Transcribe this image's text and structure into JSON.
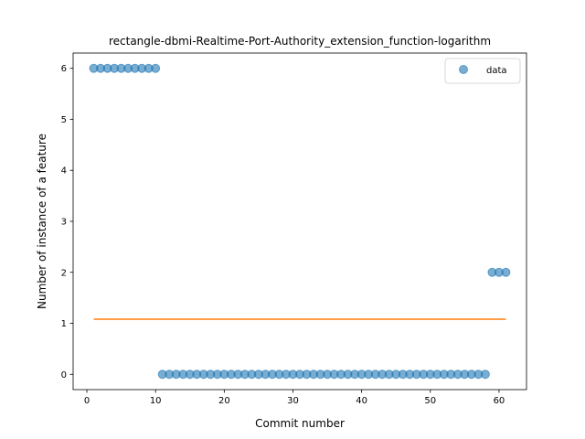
{
  "chart_data": {
    "type": "scatter",
    "title": "rectangle-dbmi-Realtime-Port-Authority_extension_function-logarithm",
    "xlabel": "Commit number",
    "ylabel": "Number of instance of a feature",
    "xlim": [
      -2.0,
      64.0
    ],
    "ylim": [
      -0.3,
      6.3
    ],
    "xticks": [
      0,
      10,
      20,
      30,
      40,
      50,
      60
    ],
    "yticks": [
      0,
      1,
      2,
      3,
      4,
      5,
      6
    ],
    "grid": false,
    "legend_position": "upper right",
    "series": [
      {
        "name": "data",
        "kind": "scatter",
        "color": "#1f77b4",
        "x": [
          1,
          2,
          3,
          4,
          5,
          6,
          7,
          8,
          9,
          10,
          11,
          12,
          13,
          14,
          15,
          16,
          17,
          18,
          19,
          20,
          21,
          22,
          23,
          24,
          25,
          26,
          27,
          28,
          29,
          30,
          31,
          32,
          33,
          34,
          35,
          36,
          37,
          38,
          39,
          40,
          41,
          42,
          43,
          44,
          45,
          46,
          47,
          48,
          49,
          50,
          51,
          52,
          53,
          54,
          55,
          56,
          57,
          58,
          59,
          60,
          61
        ],
        "y": [
          6,
          6,
          6,
          6,
          6,
          6,
          6,
          6,
          6,
          6,
          0,
          0,
          0,
          0,
          0,
          0,
          0,
          0,
          0,
          0,
          0,
          0,
          0,
          0,
          0,
          0,
          0,
          0,
          0,
          0,
          0,
          0,
          0,
          0,
          0,
          0,
          0,
          0,
          0,
          0,
          0,
          0,
          0,
          0,
          0,
          0,
          0,
          0,
          0,
          0,
          0,
          0,
          0,
          0,
          0,
          0,
          0,
          0,
          2,
          2,
          2
        ]
      },
      {
        "kind": "line",
        "color": "#ff7f0e",
        "x": [
          1,
          61
        ],
        "y": [
          1.08,
          1.08
        ]
      }
    ]
  }
}
